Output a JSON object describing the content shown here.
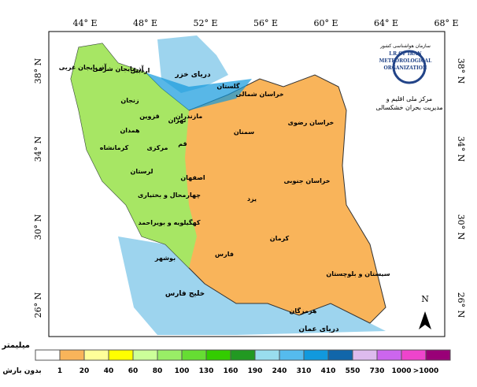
{
  "map": {
    "longitudes": [
      "44° E",
      "48° E",
      "52° E",
      "56° E",
      "60° E",
      "64° E",
      "68° E"
    ],
    "latitudes": [
      "38° N",
      "34° N",
      "30° N",
      "26° N"
    ],
    "seas": [
      "دریای خزر",
      "خلیج فارس",
      "دریای عمان"
    ],
    "provinces": [
      "آذربایجان غربی",
      "آذربایجان شرقی",
      "اردبیل",
      "زنجان",
      "قزوین",
      "تهران",
      "مازندران",
      "گلستان",
      "خراسان شمالی",
      "خراسان رضوی",
      "سمنان",
      "قم",
      "مرکزی",
      "همدان",
      "کرمانشاه",
      "لرستان",
      "اصفهان",
      "یزد",
      "خراسان جنوبی",
      "چهارمحال و بختیاری",
      "کهگیلویه و بویراحمد",
      "کرمان",
      "فارس",
      "هرمزگان",
      "سیستان و بلوچستان",
      "بوشهر"
    ],
    "north": "N"
  },
  "logo": {
    "fa": "سازمان هواشناسی کشور",
    "en": [
      "I.R.OF IRAN",
      "METEOROLOGICAL",
      "ORGANIZATION"
    ],
    "center": [
      "مرکز ملی اقلیم و",
      "مدیریت بحران خشکسالی"
    ]
  },
  "legend": {
    "unit": "میلیمتر",
    "colors": [
      "#ffffff",
      "#f9b45a",
      "#ffff99",
      "#ffff00",
      "#ccff99",
      "#99ee66",
      "#66dd33",
      "#33cc00",
      "#229922",
      "#99ddee",
      "#55bbee",
      "#1199dd",
      "#1166aa",
      "#ddbbee",
      "#cc66ee",
      "#ee44cc",
      "#990077"
    ],
    "labels": [
      "بدون بارش",
      "1",
      "20",
      "40",
      "60",
      "80",
      "100",
      "130",
      "160",
      "190",
      "240",
      "310",
      "410",
      "550",
      "730",
      "1000",
      ">1000"
    ]
  }
}
